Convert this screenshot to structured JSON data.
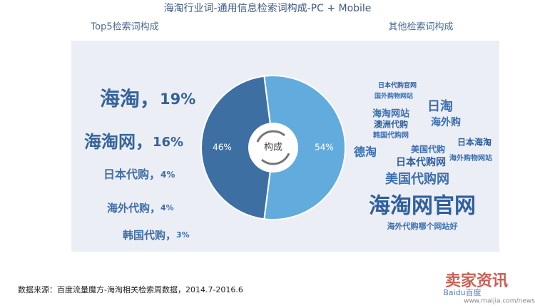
{
  "title": "海淘行业词-通用信息检索词构成-PC + Mobile",
  "chart_data": {
    "type": "pie",
    "categories": [
      "Top5检索词构成",
      "其他检索词构成"
    ],
    "values": [
      46,
      54
    ],
    "value_labels": [
      "46%",
      "54%"
    ],
    "colors": [
      "#3e6fa3",
      "#62abdd"
    ],
    "center_label": "构成",
    "donut": true
  },
  "top5": {
    "separator": "，",
    "terms": [
      "海淘",
      "海淘网",
      "日本代购",
      "海外代购",
      "韩国代购"
    ],
    "values": [
      19,
      16,
      4,
      4,
      3
    ],
    "value_labels": [
      "19%",
      "16%",
      "4%",
      "4%",
      "3%"
    ]
  },
  "word_cloud": {
    "words": [
      "海淘网官网",
      "美国代购网",
      "海外代购哪个网站好",
      "日本代购网",
      "日淘",
      "海外购",
      "澳洲代购",
      "海淘网站",
      "德淘",
      "日本海淘",
      "国外购物网站",
      "美国代购",
      "日本代购官网",
      "海外购物网站",
      "韩国代购网"
    ]
  },
  "source": "数据来源：百度流量魔方-海淘相关检索周数据，2014.7-2016.6",
  "watermark": [
    "卖家资讯",
    "Baidu百度",
    "www.maijia.com/news"
  ]
}
